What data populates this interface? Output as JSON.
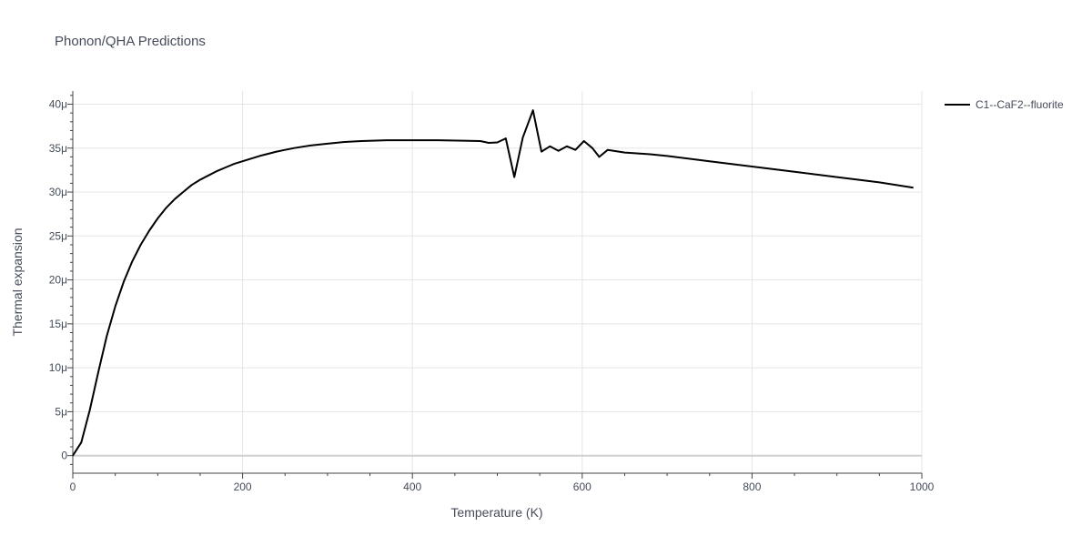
{
  "chart_data": {
    "type": "line",
    "title": "Phonon/QHA Predictions",
    "xlabel": "Temperature (K)",
    "ylabel": "Thermal expansion",
    "xlim": [
      0,
      1000
    ],
    "ylim": [
      -2,
      41.5
    ],
    "x_ticks": [
      0,
      200,
      400,
      600,
      800,
      1000
    ],
    "y_ticks": [
      0,
      5,
      10,
      15,
      20,
      25,
      30,
      35,
      40
    ],
    "y_tick_labels": [
      "0",
      "5μ",
      "10μ",
      "15μ",
      "20μ",
      "25μ",
      "30μ",
      "35μ",
      "40μ"
    ],
    "grid": true,
    "legend_position": "top-right",
    "series": [
      {
        "name": "C1--CaF2--fluorite",
        "color": "#000000",
        "x": [
          0,
          10,
          20,
          30,
          40,
          50,
          60,
          70,
          80,
          90,
          100,
          110,
          120,
          130,
          140,
          150,
          160,
          170,
          180,
          190,
          200,
          210,
          220,
          230,
          240,
          250,
          260,
          270,
          280,
          300,
          320,
          340,
          370,
          400,
          430,
          460,
          480,
          490,
          500,
          510,
          520,
          530,
          542,
          552,
          562,
          572,
          582,
          592,
          602,
          612,
          620,
          630,
          650,
          680,
          700,
          750,
          800,
          850,
          900,
          950,
          990
        ],
        "y": [
          0,
          1.5,
          5.2,
          9.5,
          13.6,
          17.0,
          19.8,
          22.1,
          24.0,
          25.6,
          27.0,
          28.2,
          29.2,
          30.0,
          30.8,
          31.4,
          31.9,
          32.4,
          32.8,
          33.2,
          33.5,
          33.8,
          34.1,
          34.35,
          34.6,
          34.8,
          35.0,
          35.15,
          35.3,
          35.5,
          35.7,
          35.8,
          35.9,
          35.9,
          35.9,
          35.85,
          35.8,
          35.6,
          35.65,
          36.1,
          31.7,
          36.2,
          39.3,
          34.6,
          35.2,
          34.7,
          35.2,
          34.8,
          35.8,
          35.0,
          34.0,
          34.8,
          34.5,
          34.3,
          34.1,
          33.5,
          32.9,
          32.3,
          31.7,
          31.1,
          30.5
        ]
      }
    ]
  }
}
